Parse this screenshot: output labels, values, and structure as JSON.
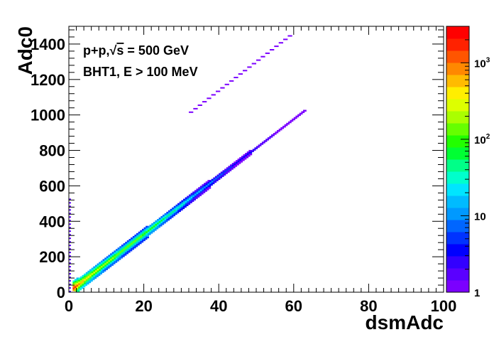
{
  "chart_data": {
    "type": "heatmap",
    "title": "",
    "xlabel": "dsmAdc",
    "ylabel": "Adc0",
    "xlim": [
      0,
      100
    ],
    "ylim": [
      0,
      1500
    ],
    "x_ticks": [
      "0",
      "20",
      "40",
      "60",
      "80",
      "100"
    ],
    "y_ticks": [
      "0",
      "200",
      "400",
      "600",
      "800",
      "1000",
      "1200",
      "1400"
    ],
    "annotations": [
      {
        "prefix": "p+p,",
        "radical": "s",
        "suffix": " = 500 GeV"
      },
      {
        "text": "BHT1, E > 100 MeV"
      }
    ],
    "colorbar": {
      "scale": "log",
      "range": [
        1,
        3000
      ],
      "ticks": [
        {
          "value": 1,
          "base": "1",
          "exp": ""
        },
        {
          "value": 10,
          "base": "10",
          "exp": ""
        },
        {
          "value": 100,
          "base": "10",
          "exp": "2"
        },
        {
          "value": 1000,
          "base": "10",
          "exp": "3"
        }
      ],
      "palette": [
        "#7B00FF",
        "#5A00FF",
        "#3300FF",
        "#0000FF",
        "#0033FF",
        "#0066FF",
        "#0099FF",
        "#00BBFF",
        "#00E5FF",
        "#00FFCC",
        "#00FF88",
        "#00FF33",
        "#22FF00",
        "#66FF00",
        "#AAFF00",
        "#DDFF00",
        "#FFEE00",
        "#FFBB00",
        "#FF8800",
        "#FF5500",
        "#FF2200",
        "#FF0000"
      ]
    },
    "bands": [
      {
        "name": "main",
        "x_start": 1,
        "x_end": 63,
        "y_per_x": 16.3,
        "y_offset": 0,
        "counts": [
          [
            1,
            2000
          ],
          [
            2,
            1200
          ],
          [
            3,
            600
          ],
          [
            4,
            450
          ],
          [
            5,
            350
          ],
          [
            6,
            300
          ],
          [
            7,
            260
          ],
          [
            8,
            230
          ],
          [
            9,
            200
          ],
          [
            10,
            180
          ],
          [
            12,
            160
          ],
          [
            14,
            140
          ],
          [
            16,
            130
          ],
          [
            18,
            120
          ],
          [
            20,
            110
          ],
          [
            22,
            90
          ],
          [
            24,
            70
          ],
          [
            26,
            50
          ],
          [
            28,
            40
          ],
          [
            30,
            30
          ],
          [
            32,
            20
          ],
          [
            34,
            15
          ],
          [
            36,
            12
          ],
          [
            38,
            9
          ],
          [
            40,
            7
          ],
          [
            42,
            5
          ],
          [
            44,
            4
          ],
          [
            46,
            3
          ],
          [
            48,
            3
          ],
          [
            50,
            2
          ],
          [
            53,
            2
          ],
          [
            56,
            1
          ],
          [
            60,
            1
          ],
          [
            63,
            1
          ]
        ]
      },
      {
        "name": "upper",
        "x_start": 32,
        "x_end": 59,
        "y_per_x": 16.3,
        "y_offset": 490,
        "count": 1
      }
    ],
    "edge_column": {
      "x": 0,
      "y_max": 520,
      "count": 2
    }
  }
}
